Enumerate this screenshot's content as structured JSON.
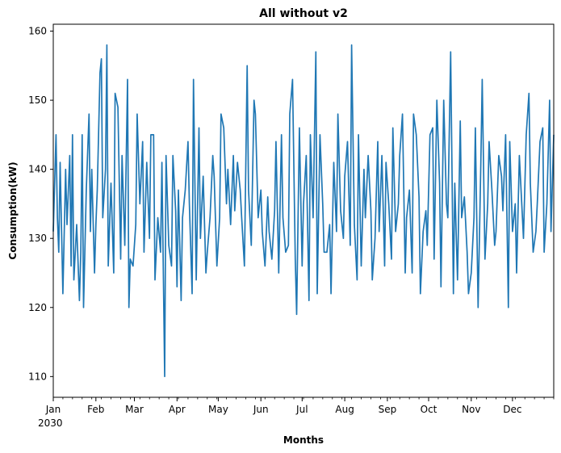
{
  "chart_data": {
    "type": "line",
    "title": "All without v2",
    "xlabel": "Months",
    "ylabel": "Consumption(kW)",
    "x_year_label": "2030",
    "x_range": [
      "2030-01-01",
      "2030-12-31"
    ],
    "ylim": [
      107,
      161
    ],
    "yticks": [
      110,
      120,
      130,
      140,
      150,
      160
    ],
    "xticks": [
      {
        "date": "2030-01-01",
        "label": "Jan"
      },
      {
        "date": "2030-02-01",
        "label": "Feb"
      },
      {
        "date": "2030-03-01",
        "label": "Mar"
      },
      {
        "date": "2030-04-01",
        "label": "Apr"
      },
      {
        "date": "2030-05-01",
        "label": "May"
      },
      {
        "date": "2030-06-01",
        "label": "Jun"
      },
      {
        "date": "2030-07-01",
        "label": "Jul"
      },
      {
        "date": "2030-08-01",
        "label": "Aug"
      },
      {
        "date": "2030-09-01",
        "label": "Sep"
      },
      {
        "date": "2030-10-01",
        "label": "Oct"
      },
      {
        "date": "2030-11-01",
        "label": "Nov"
      },
      {
        "date": "2030-12-01",
        "label": "Dec"
      }
    ],
    "grid": false,
    "series_color": "#1f77b4",
    "series": [
      {
        "name": "",
        "x": [
          "2030-01-01",
          "2030-01-03",
          "2030-01-04",
          "2030-01-05",
          "2030-01-06",
          "2030-01-08",
          "2030-01-10",
          "2030-01-11",
          "2030-01-13",
          "2030-01-14",
          "2030-01-15",
          "2030-01-16",
          "2030-01-18",
          "2030-01-20",
          "2030-01-21",
          "2030-01-22",
          "2030-01-23",
          "2030-01-25",
          "2030-01-27",
          "2030-01-28",
          "2030-01-29",
          "2030-01-31",
          "2030-02-01",
          "2030-02-02",
          "2030-02-04",
          "2030-02-05",
          "2030-02-06",
          "2030-02-08",
          "2030-02-09",
          "2030-02-10",
          "2030-02-12",
          "2030-02-14",
          "2030-02-15",
          "2030-02-17",
          "2030-02-19",
          "2030-02-20",
          "2030-02-22",
          "2030-02-24",
          "2030-02-25",
          "2030-02-26",
          "2030-02-28",
          "2030-03-02",
          "2030-03-03",
          "2030-03-05",
          "2030-03-07",
          "2030-03-08",
          "2030-03-10",
          "2030-03-12",
          "2030-03-13",
          "2030-03-15",
          "2030-03-16",
          "2030-03-18",
          "2030-03-20",
          "2030-03-21",
          "2030-03-23",
          "2030-03-24",
          "2030-03-26",
          "2030-03-28",
          "2030-03-29",
          "2030-03-31",
          "2030-04-01",
          "2030-04-02",
          "2030-04-04",
          "2030-04-05",
          "2030-04-07",
          "2030-04-09",
          "2030-04-10",
          "2030-04-12",
          "2030-04-13",
          "2030-04-15",
          "2030-04-17",
          "2030-04-18",
          "2030-04-20",
          "2030-04-22",
          "2030-04-23",
          "2030-04-25",
          "2030-04-27",
          "2030-04-28",
          "2030-04-30",
          "2030-05-02",
          "2030-05-03",
          "2030-05-05",
          "2030-05-07",
          "2030-05-08",
          "2030-05-10",
          "2030-05-12",
          "2030-05-13",
          "2030-05-15",
          "2030-05-17",
          "2030-05-18",
          "2030-05-20",
          "2030-05-22",
          "2030-05-23",
          "2030-05-25",
          "2030-05-27",
          "2030-05-28",
          "2030-05-30",
          "2030-06-01",
          "2030-06-02",
          "2030-06-04",
          "2030-06-06",
          "2030-06-07",
          "2030-06-09",
          "2030-06-11",
          "2030-06-12",
          "2030-06-14",
          "2030-06-16",
          "2030-06-17",
          "2030-06-19",
          "2030-06-21",
          "2030-06-22",
          "2030-06-24",
          "2030-06-26",
          "2030-06-27",
          "2030-06-29",
          "2030-07-01",
          "2030-07-02",
          "2030-07-04",
          "2030-07-06",
          "2030-07-07",
          "2030-07-09",
          "2030-07-11",
          "2030-07-12",
          "2030-07-14",
          "2030-07-16",
          "2030-07-17",
          "2030-07-19",
          "2030-07-21",
          "2030-07-22",
          "2030-07-24",
          "2030-07-26",
          "2030-07-27",
          "2030-07-29",
          "2030-07-31",
          "2030-08-01",
          "2030-08-03",
          "2030-08-05",
          "2030-08-06",
          "2030-08-08",
          "2030-08-10",
          "2030-08-11",
          "2030-08-13",
          "2030-08-15",
          "2030-08-16",
          "2030-08-18",
          "2030-08-20",
          "2030-08-21",
          "2030-08-23",
          "2030-08-25",
          "2030-08-26",
          "2030-08-28",
          "2030-08-30",
          "2030-08-31",
          "2030-09-02",
          "2030-09-04",
          "2030-09-05",
          "2030-09-07",
          "2030-09-09",
          "2030-09-10",
          "2030-09-12",
          "2030-09-14",
          "2030-09-15",
          "2030-09-17",
          "2030-09-19",
          "2030-09-20",
          "2030-09-22",
          "2030-09-24",
          "2030-09-25",
          "2030-09-27",
          "2030-09-29",
          "2030-09-30",
          "2030-10-02",
          "2030-10-04",
          "2030-10-05",
          "2030-10-07",
          "2030-10-09",
          "2030-10-10",
          "2030-10-12",
          "2030-10-14",
          "2030-10-15",
          "2030-10-17",
          "2030-10-19",
          "2030-10-20",
          "2030-10-22",
          "2030-10-24",
          "2030-10-25",
          "2030-10-27",
          "2030-10-29",
          "2030-10-30",
          "2030-11-01",
          "2030-11-03",
          "2030-11-04",
          "2030-11-06",
          "2030-11-08",
          "2030-11-09",
          "2030-11-11",
          "2030-11-13",
          "2030-11-14",
          "2030-11-16",
          "2030-11-18",
          "2030-11-19",
          "2030-11-21",
          "2030-11-23",
          "2030-11-24",
          "2030-11-26",
          "2030-11-28",
          "2030-11-29",
          "2030-12-01",
          "2030-12-03",
          "2030-12-04",
          "2030-12-06",
          "2030-12-08",
          "2030-12-09",
          "2030-12-11",
          "2030-12-13",
          "2030-12-14",
          "2030-12-16",
          "2030-12-18",
          "2030-12-19",
          "2030-12-21",
          "2030-12-23",
          "2030-12-24",
          "2030-12-26",
          "2030-12-28",
          "2030-12-29",
          "2030-12-31"
        ],
        "y": [
          131,
          145,
          133,
          128,
          141,
          122,
          140,
          132,
          142,
          126,
          145,
          124,
          132,
          121,
          128,
          145,
          120,
          137,
          148,
          131,
          140,
          125,
          132,
          137,
          154,
          156,
          133,
          140,
          158,
          126,
          138,
          125,
          151,
          149,
          127,
          142,
          129,
          153,
          120,
          127,
          126,
          132,
          148,
          135,
          144,
          128,
          141,
          130,
          145,
          145,
          124,
          133,
          128,
          141,
          110,
          142,
          129,
          126,
          142,
          134,
          123,
          137,
          121,
          133,
          137,
          144,
          135,
          122,
          153,
          124,
          146,
          130,
          139,
          125,
          128,
          133,
          142,
          139,
          126,
          133,
          148,
          146,
          135,
          140,
          132,
          142,
          134,
          141,
          137,
          133,
          126,
          155,
          137,
          129,
          150,
          148,
          133,
          137,
          131,
          126,
          136,
          131,
          127,
          134,
          144,
          125,
          145,
          133,
          128,
          129,
          148,
          153,
          127,
          119,
          146,
          126,
          135,
          142,
          121,
          145,
          133,
          157,
          122,
          145,
          135,
          128,
          128,
          132,
          122,
          141,
          131,
          148,
          134,
          130,
          139,
          144,
          129,
          158,
          132,
          124,
          145,
          126,
          140,
          133,
          142,
          134,
          124,
          130,
          144,
          131,
          142,
          126,
          141,
          135,
          127,
          146,
          131,
          135,
          142,
          148,
          125,
          133,
          137,
          125,
          148,
          145,
          136,
          122,
          131,
          134,
          129,
          145,
          146,
          127,
          150,
          138,
          123,
          150,
          135,
          133,
          157,
          122,
          138,
          124,
          147,
          133,
          136,
          128,
          122,
          125,
          133,
          146,
          120,
          141,
          153,
          127,
          135,
          144,
          137,
          129,
          131,
          142,
          139,
          134,
          145,
          120,
          144,
          131,
          135,
          125,
          142,
          134,
          130,
          145,
          151,
          138,
          128,
          131,
          135,
          144,
          146,
          128,
          135,
          150,
          131,
          145
        ]
      }
    ]
  }
}
